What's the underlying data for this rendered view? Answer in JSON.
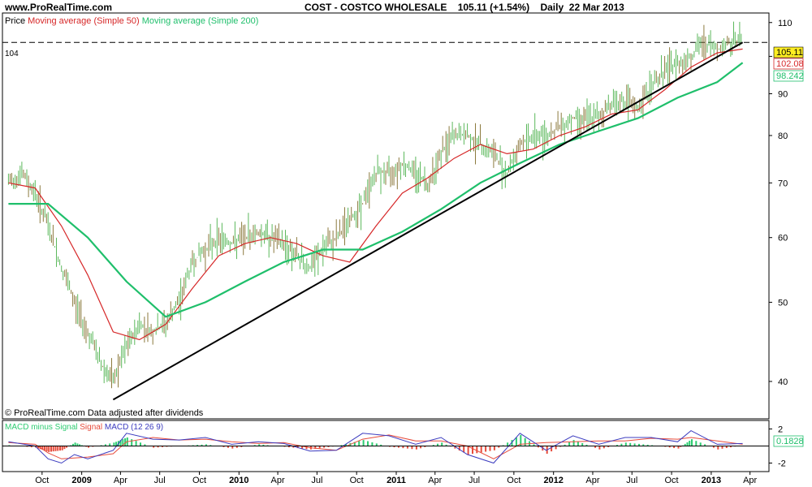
{
  "header": {
    "site": "www.ProRealTime.com",
    "symbol": "COST - COSTCO WHOLESALE",
    "last": "105.11 (+1.54%)",
    "period": "Daily",
    "date": "22 Mar 2013"
  },
  "price_panel": {
    "legend_price": "Price",
    "legend_ma50": "Moving average (Simple 50)",
    "legend_ma200": "Moving average (Simple 200)",
    "footer_note": "© ProRealTime.com  Data adjusted after dividends",
    "level_label": "104",
    "badge_price": "105.11",
    "badge_ma50": "102.08",
    "badge_ma200": "98.242",
    "colors": {
      "candle": "#5cb85c",
      "ma50": "#d62728",
      "ma200": "#1fbf6b",
      "trend": "#000000"
    }
  },
  "macd_panel": {
    "legend_hist": "MACD minus Signal",
    "legend_signal": "Signal",
    "legend_macd": "MACD (12 26 9)",
    "badge_value": "0.1828",
    "colors": {
      "hist_pos": "#2ecc71",
      "hist_neg": "#e74c3c",
      "signal": "#e74c3c",
      "macd": "#3b3bbf"
    }
  },
  "chart_data": [
    {
      "type": "line",
      "title": "COST - COSTCO WHOLESALE",
      "scale": "log",
      "ylim": [
        36,
        113
      ],
      "y_ticks": [
        40,
        50,
        60,
        70,
        80,
        90,
        100,
        110
      ],
      "y_tick_labels": [
        "40",
        "50",
        "60",
        "70",
        "80",
        "90",
        "",
        "110"
      ],
      "x_tick_labels": [
        "Oct",
        "2009",
        "Apr",
        "Jul",
        "Oct",
        "2010",
        "Apr",
        "Jul",
        "Oct",
        "2011",
        "Apr",
        "Jul",
        "Oct",
        "2012",
        "Apr",
        "Jul",
        "Oct",
        "2013",
        "Apr"
      ],
      "x_tick_dates": [
        "2008-10",
        "2009-01",
        "2009-04",
        "2009-07",
        "2009-10",
        "2010-01",
        "2010-04",
        "2010-07",
        "2010-10",
        "2011-01",
        "2011-04",
        "2011-07",
        "2011-10",
        "2012-01",
        "2012-04",
        "2012-07",
        "2012-10",
        "2013-01",
        "2013-04"
      ],
      "horizontal_line": 104,
      "series": [
        {
          "name": "Price",
          "x": [
            "2008-07",
            "2008-08",
            "2008-09",
            "2008-10",
            "2008-11",
            "2008-12",
            "2009-01",
            "2009-02",
            "2009-03",
            "2009-04",
            "2009-05",
            "2009-06",
            "2009-07",
            "2009-08",
            "2009-09",
            "2009-10",
            "2009-11",
            "2009-12",
            "2010-01",
            "2010-02",
            "2010-03",
            "2010-04",
            "2010-05",
            "2010-06",
            "2010-07",
            "2010-08",
            "2010-09",
            "2010-10",
            "2010-11",
            "2010-12",
            "2011-01",
            "2011-02",
            "2011-03",
            "2011-04",
            "2011-05",
            "2011-06",
            "2011-07",
            "2011-08",
            "2011-09",
            "2011-10",
            "2011-11",
            "2011-12",
            "2012-01",
            "2012-02",
            "2012-03",
            "2012-04",
            "2012-05",
            "2012-06",
            "2012-07",
            "2012-08",
            "2012-09",
            "2012-10",
            "2012-11",
            "2012-12",
            "2013-01",
            "2013-02",
            "2013-03"
          ],
          "values": [
            70,
            72,
            68,
            62,
            55,
            50,
            46,
            42,
            40,
            44,
            47,
            46,
            47,
            50,
            56,
            58,
            60,
            59,
            60,
            61,
            60,
            59,
            57,
            55,
            58,
            60,
            63,
            66,
            72,
            72,
            74,
            72,
            70,
            76,
            80,
            80,
            78,
            76,
            72,
            78,
            80,
            80,
            82,
            84,
            84,
            84,
            88,
            88,
            86,
            92,
            96,
            98,
            100,
            104,
            102,
            104,
            105.11
          ]
        },
        {
          "name": "Moving average (Simple 50)",
          "x": [
            "2008-07",
            "2008-09",
            "2008-11",
            "2009-01",
            "2009-03",
            "2009-05",
            "2009-07",
            "2009-09",
            "2009-11",
            "2010-01",
            "2010-03",
            "2010-05",
            "2010-07",
            "2010-09",
            "2010-11",
            "2011-01",
            "2011-03",
            "2011-05",
            "2011-07",
            "2011-09",
            "2011-11",
            "2012-01",
            "2012-03",
            "2012-05",
            "2012-07",
            "2012-09",
            "2012-11",
            "2013-01",
            "2013-03"
          ],
          "values": [
            70,
            69,
            62,
            54,
            46,
            45,
            47,
            52,
            57,
            59,
            60,
            59,
            57,
            56,
            62,
            68,
            71,
            75,
            78,
            76,
            77,
            80,
            82,
            85,
            86,
            91,
            97,
            101,
            102.08
          ]
        },
        {
          "name": "Moving average (Simple 200)",
          "x": [
            "2008-07",
            "2008-10",
            "2009-01",
            "2009-04",
            "2009-07",
            "2009-10",
            "2010-01",
            "2010-04",
            "2010-07",
            "2010-10",
            "2011-01",
            "2011-04",
            "2011-07",
            "2011-10",
            "2012-01",
            "2012-04",
            "2012-07",
            "2012-10",
            "2013-01",
            "2013-03"
          ],
          "values": [
            66,
            66,
            60,
            53,
            48,
            50,
            53,
            56,
            58,
            58,
            61,
            65,
            70,
            74,
            78,
            81,
            84,
            89,
            93,
            98.242
          ]
        },
        {
          "name": "trendline",
          "x": [
            "2009-03",
            "2013-03"
          ],
          "values": [
            38,
            104
          ]
        }
      ]
    },
    {
      "type": "line",
      "title": "MACD (12 26 9)",
      "ylim": [
        -3,
        3
      ],
      "y_ticks": [
        2,
        -2
      ],
      "y_tick_labels": [
        "2",
        "-2"
      ],
      "series": [
        {
          "name": "MACD",
          "x": [
            "2008-07",
            "2008-09",
            "2008-10",
            "2008-11",
            "2008-12",
            "2009-01",
            "2009-03",
            "2009-04",
            "2009-06",
            "2009-08",
            "2009-10",
            "2009-12",
            "2010-02",
            "2010-04",
            "2010-06",
            "2010-08",
            "2010-10",
            "2010-12",
            "2011-02",
            "2011-04",
            "2011-06",
            "2011-08",
            "2011-10",
            "2011-12",
            "2012-02",
            "2012-04",
            "2012-06",
            "2012-08",
            "2012-10",
            "2012-11",
            "2013-01",
            "2013-03"
          ],
          "values": [
            0.5,
            0,
            -1.5,
            -2,
            -1,
            -1.5,
            -0.5,
            1.5,
            0.8,
            0.7,
            1,
            0.2,
            0.5,
            0.3,
            -0.6,
            -0.5,
            1.5,
            1.2,
            0.2,
            1,
            -1,
            -2,
            1.5,
            -0.5,
            1.2,
            0.2,
            1,
            1,
            0.5,
            1.8,
            0.2,
            0.3
          ]
        },
        {
          "name": "Signal",
          "x": [
            "2008-07",
            "2008-09",
            "2008-10",
            "2008-11",
            "2008-12",
            "2009-01",
            "2009-03",
            "2009-04",
            "2009-06",
            "2009-08",
            "2009-10",
            "2009-12",
            "2010-02",
            "2010-04",
            "2010-06",
            "2010-08",
            "2010-10",
            "2010-12",
            "2011-02",
            "2011-04",
            "2011-06",
            "2011-08",
            "2011-10",
            "2011-12",
            "2012-02",
            "2012-04",
            "2012-06",
            "2012-08",
            "2012-10",
            "2012-11",
            "2013-01",
            "2013-03"
          ],
          "values": [
            0.4,
            0.2,
            -0.8,
            -1.5,
            -1.4,
            -1.3,
            -0.9,
            0.5,
            1,
            0.7,
            0.8,
            0.5,
            0.3,
            0.4,
            -0.2,
            -0.5,
            0.8,
            1.3,
            0.6,
            0.6,
            0,
            -1.5,
            0.2,
            0.4,
            0.5,
            0.6,
            0.6,
            0.9,
            0.8,
            1,
            0.6,
            0.2
          ]
        }
      ]
    }
  ]
}
